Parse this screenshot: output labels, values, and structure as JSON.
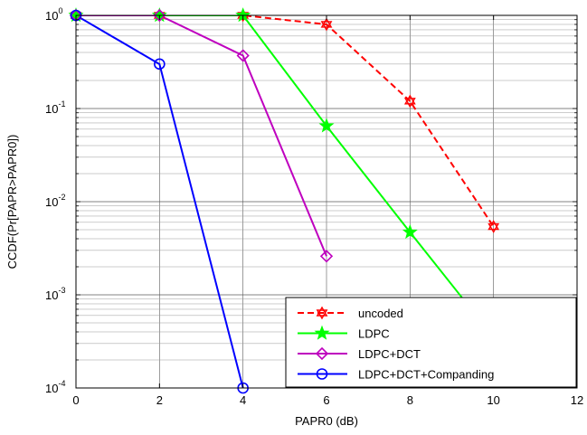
{
  "chart_data": {
    "type": "line",
    "title": "",
    "xlabel": "PAPR0 (dB)",
    "ylabel": "CCDF(Pr[PAPR>PAPR0])",
    "xlim": [
      0,
      12
    ],
    "ylim": [
      0.0001,
      1
    ],
    "yscale": "log",
    "grid": true,
    "legend_position": "bottom-right",
    "x_ticks": [
      "0",
      "2",
      "4",
      "6",
      "8",
      "10",
      "12"
    ],
    "y_ticks": [
      {
        "base": "10",
        "exp": "-4",
        "value": 0.0001
      },
      {
        "base": "10",
        "exp": "-3",
        "value": 0.001
      },
      {
        "base": "10",
        "exp": "-2",
        "value": 0.01
      },
      {
        "base": "10",
        "exp": "-1",
        "value": 0.1
      },
      {
        "base": "10",
        "exp": "0",
        "value": 1
      }
    ],
    "series": [
      {
        "name": "uncoded",
        "color": "#ff0000",
        "dash": "dashed",
        "marker": "hexagram",
        "x": [
          0,
          2,
          4,
          6,
          8,
          10
        ],
        "y": [
          1,
          1,
          1,
          0.8,
          0.12,
          0.0054
        ]
      },
      {
        "name": "LDPC",
        "color": "#00ff00",
        "dash": "solid",
        "marker": "pentagram",
        "x": [
          0,
          2,
          4,
          6,
          8,
          10
        ],
        "y": [
          1,
          1,
          1,
          0.065,
          0.0047,
          0.00035
        ]
      },
      {
        "name": "LDPC+DCT",
        "color": "#bf00bf",
        "dash": "solid",
        "marker": "diamond",
        "x": [
          0,
          2,
          4,
          6
        ],
        "y": [
          1,
          1,
          0.37,
          0.0026
        ]
      },
      {
        "name": "LDPC+DCT+Companding",
        "color": "#0000ff",
        "dash": "solid",
        "marker": "circle",
        "x": [
          0,
          2,
          4
        ],
        "y": [
          1,
          0.3,
          0.0001
        ]
      }
    ]
  }
}
